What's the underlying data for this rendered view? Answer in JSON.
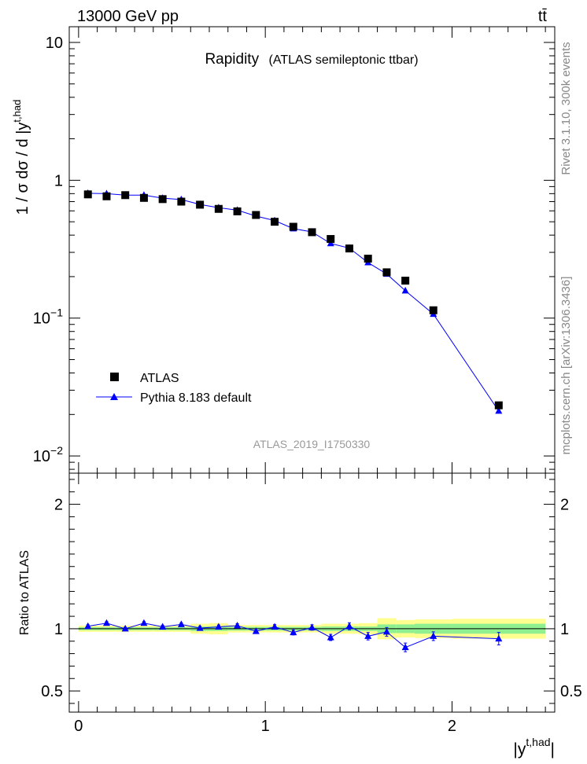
{
  "header": {
    "beam": "13000 GeV pp",
    "process": "tt̄"
  },
  "side_labels": {
    "rivet": "Rivet 3.1.10,  300k events",
    "mcplots": "mcplots.cern.ch [arXiv:1306.3436]"
  },
  "colors": {
    "data": "#000000",
    "mc": "#0000ff",
    "band_outer": "#ffff90",
    "band_inner": "#90f090",
    "side_text": "#888888"
  },
  "chart_data": [
    {
      "type": "scatter",
      "panel": "main",
      "title": "Rapidity",
      "subtitle": "(ATLAS semileptonic ttbar)",
      "analysis_id": "ATLAS_2019_I1750330",
      "ylabel": "1 / σ dσ / d |y^{t,had}|",
      "ylabel_main": "1 / σ dσ / d |y",
      "ylabel_sup": "t,had",
      "yscale": "log",
      "ylim": [
        0.0075,
        13
      ],
      "xlim": [
        -0.05,
        2.55
      ],
      "yticks": [
        {
          "value": 10,
          "base": "10",
          "exp": ""
        },
        {
          "value": 1,
          "base": "1",
          "exp": ""
        },
        {
          "value": 0.1,
          "base": "10",
          "exp": "−1"
        },
        {
          "value": 0.01,
          "base": "10",
          "exp": "−2"
        }
      ],
      "legend_position": "bottom-left",
      "x_bins": [
        [
          0,
          0.1
        ],
        [
          0.1,
          0.2
        ],
        [
          0.2,
          0.3
        ],
        [
          0.3,
          0.4
        ],
        [
          0.4,
          0.5
        ],
        [
          0.5,
          0.6
        ],
        [
          0.6,
          0.7
        ],
        [
          0.7,
          0.8
        ],
        [
          0.8,
          0.9
        ],
        [
          0.9,
          1.0
        ],
        [
          1.0,
          1.1
        ],
        [
          1.1,
          1.2
        ],
        [
          1.2,
          1.3
        ],
        [
          1.3,
          1.4
        ],
        [
          1.4,
          1.5
        ],
        [
          1.5,
          1.6
        ],
        [
          1.6,
          1.7
        ],
        [
          1.7,
          1.8
        ],
        [
          1.8,
          2.0
        ],
        [
          2.0,
          2.5
        ]
      ],
      "x": [
        0.05,
        0.15,
        0.25,
        0.35,
        0.45,
        0.55,
        0.65,
        0.75,
        0.85,
        0.95,
        1.05,
        1.15,
        1.25,
        1.35,
        1.45,
        1.55,
        1.65,
        1.75,
        1.9,
        2.25
      ],
      "series": [
        {
          "name": "ATLAS",
          "marker": "square",
          "values": [
            0.79,
            0.765,
            0.78,
            0.745,
            0.73,
            0.7,
            0.665,
            0.62,
            0.595,
            0.56,
            0.5,
            0.46,
            0.42,
            0.375,
            0.32,
            0.27,
            0.215,
            0.187,
            0.114,
            0.0233
          ]
        },
        {
          "name": "Pythia 8.183 default",
          "marker": "triangle",
          "line": true,
          "values": [
            0.805,
            0.8,
            0.78,
            0.78,
            0.742,
            0.725,
            0.668,
            0.632,
            0.607,
            0.55,
            0.51,
            0.446,
            0.422,
            0.348,
            0.322,
            0.253,
            0.209,
            0.158,
            0.107,
            0.0212
          ]
        }
      ]
    },
    {
      "type": "scatter",
      "panel": "ratio",
      "ylabel": "Ratio to ATLAS",
      "xlabel": "|y^{t,had}|",
      "xlabel_main": "|y",
      "xlabel_sup": "t,had",
      "xlabel_close": "|",
      "ylim": [
        0.33,
        2.25
      ],
      "xlim": [
        -0.05,
        2.55
      ],
      "yticks": [
        {
          "value": 0.5,
          "label": "0.5"
        },
        {
          "value": 1,
          "label": "1"
        },
        {
          "value": 2,
          "label": "2"
        }
      ],
      "xticks": [
        {
          "value": 0,
          "label": "0"
        },
        {
          "value": 1,
          "label": "1"
        },
        {
          "value": 2,
          "label": "2"
        }
      ],
      "band_inner": [
        0.012,
        0.012,
        0.012,
        0.012,
        0.012,
        0.012,
        0.018,
        0.018,
        0.015,
        0.015,
        0.015,
        0.015,
        0.015,
        0.018,
        0.018,
        0.018,
        0.035,
        0.035,
        0.04,
        0.04
      ],
      "band_outer": [
        0.025,
        0.025,
        0.025,
        0.025,
        0.025,
        0.025,
        0.04,
        0.045,
        0.03,
        0.03,
        0.03,
        0.03,
        0.03,
        0.04,
        0.04,
        0.045,
        0.085,
        0.07,
        0.075,
        0.08
      ],
      "series": [
        {
          "name": "Pythia 8.183 default",
          "values": [
            1.02,
            1.045,
            1.0,
            1.045,
            1.015,
            1.035,
            1.005,
            1.015,
            1.025,
            0.98,
            1.015,
            0.97,
            1.01,
            0.93,
            1.02,
            0.94,
            0.975,
            0.85,
            0.94,
            0.92
          ],
          "errors": [
            0.012,
            0.012,
            0.012,
            0.012,
            0.012,
            0.012,
            0.015,
            0.015,
            0.015,
            0.018,
            0.018,
            0.02,
            0.022,
            0.025,
            0.028,
            0.03,
            0.035,
            0.035,
            0.035,
            0.05
          ]
        }
      ]
    }
  ]
}
